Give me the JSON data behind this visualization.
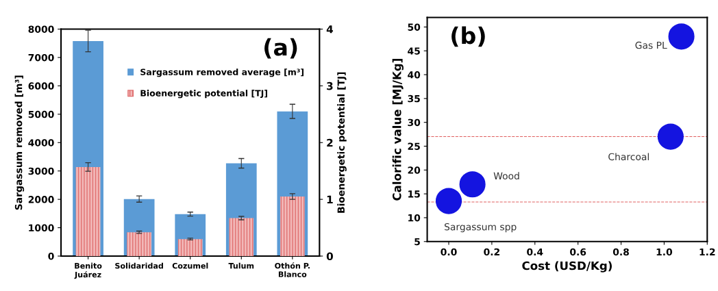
{
  "chart_data": [
    {
      "type": "bar",
      "categories": [
        "Benito\nJuárez",
        "Solidaridad",
        "Cozumel",
        "Tulum",
        "Othón P.\nBlanco"
      ],
      "ylabel": "Sargassum removed [m³]",
      "y2label": "Bioenergetic potential [TJ]",
      "ylim": [
        0,
        8000
      ],
      "yticks": [
        0,
        1000,
        2000,
        3000,
        4000,
        5000,
        6000,
        7000,
        8000
      ],
      "y2lim": [
        0,
        4
      ],
      "y2ticks": [
        0,
        1,
        2,
        3,
        4
      ],
      "legend": "top",
      "annotations": [
        "(a)"
      ],
      "series": [
        {
          "name": "Sargassum removed average [m³]",
          "color": "#5b9bd5",
          "values": [
            7580,
            2010,
            1480,
            3270,
            5100
          ],
          "errors": [
            380,
            110,
            70,
            170,
            250
          ]
        },
        {
          "name": "Bioenergetic potential [TJ]",
          "color": "#f2b8b8",
          "axis": "y2",
          "values": [
            1.57,
            0.42,
            0.3,
            0.67,
            1.05
          ],
          "errors": [
            0.075,
            0.02,
            0.015,
            0.03,
            0.05
          ]
        }
      ]
    },
    {
      "type": "scatter",
      "xlabel": "Cost (USD/Kg)",
      "ylabel": "Calorific value [MJ/Kg]",
      "xlim": [
        -0.1,
        1.2
      ],
      "ylim": [
        5,
        52
      ],
      "xticks": [
        {
          "value": 0,
          "label": "0.0"
        },
        0.2,
        0.4,
        0.6,
        0.8,
        {
          "value": 1,
          "label": "1.0"
        },
        1.2
      ],
      "yticks": [
        5,
        10,
        15,
        20,
        25,
        30,
        35,
        40,
        45,
        50
      ],
      "marker": "circle",
      "series": [
        {
          "color": "#1414e0",
          "x": [
            0.0,
            0.11,
            1.03,
            1.08
          ],
          "values": [
            13.5,
            17,
            27,
            48
          ]
        }
      ],
      "ref_lines": [
        {
          "axis": "y",
          "value": 27,
          "color": "#e06060",
          "line_style": "dashed"
        },
        {
          "axis": "y",
          "value": 13.3,
          "color": "#e06060",
          "line_style": "dashed"
        }
      ],
      "annotations": [
        "(b)",
        {
          "text": "Sargassum spp",
          "x": 0.0,
          "y": 13.5
        },
        {
          "text": "Wood",
          "x": 0.11,
          "y": 17
        },
        {
          "text": "Charcoal",
          "x": 1.03,
          "y": 27
        },
        {
          "text": "Gas PL",
          "x": 1.08,
          "y": 48
        }
      ]
    }
  ]
}
